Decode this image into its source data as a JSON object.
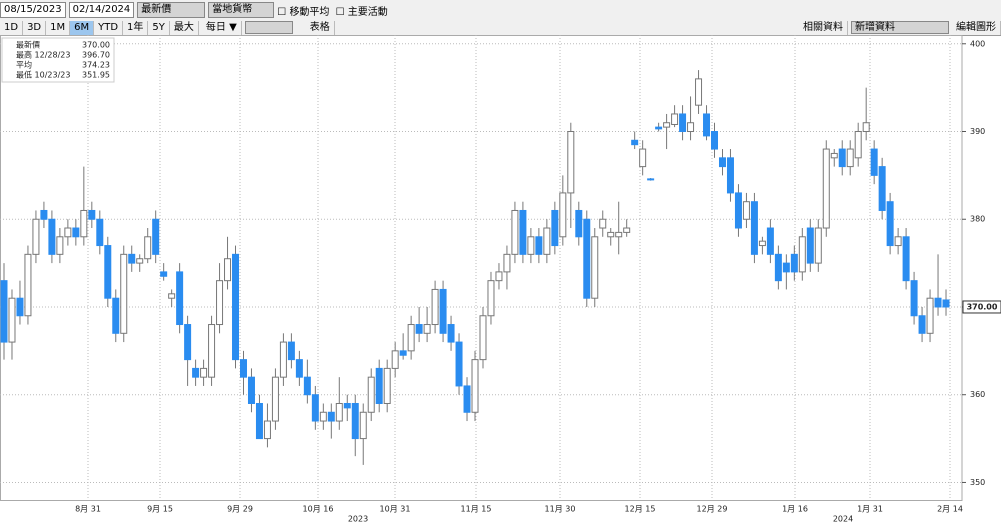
{
  "toolbar": {
    "start_date": "08/15/2023",
    "end_date": "02/14/2024",
    "field": "最新價",
    "currency": "當地貨幣",
    "moving_average": "移動平均",
    "events": "主要活動",
    "ranges": [
      "1D",
      "3D",
      "1M",
      "6M",
      "YTD",
      "1年",
      "5Y",
      "最大"
    ],
    "frequency": "每日 ▼",
    "table": "表格",
    "related": "相關資料",
    "add": "新增資料",
    "edit": "編輯圖形"
  },
  "chart_data": {
    "type": "candlestick",
    "legend": [
      {
        "label": "最新價",
        "value": "370.00"
      },
      {
        "label": "最高 12/28/23",
        "value": "396.70"
      },
      {
        "label": "平均",
        "value": "374.23"
      },
      {
        "label": "最低 10/23/23",
        "value": "351.95"
      }
    ],
    "up_color": "#ffffff",
    "down_color": "#2a8cf0",
    "wick_color": "#777777",
    "ylim": [
      348,
      401
    ],
    "yticks": [
      350,
      360,
      370,
      380,
      390,
      400
    ],
    "grid": true,
    "xticks": [
      "8月 31",
      "9月 15",
      "9月 29",
      "10月 16",
      "10月 31",
      "11月 15",
      "11月 30",
      "12月 15",
      "12月 29",
      "1月 16",
      "1月 31",
      "2月 14"
    ],
    "years": [
      "2023",
      "2024"
    ],
    "candles": [
      [
        373,
        375,
        364,
        366
      ],
      [
        366,
        372,
        364,
        371
      ],
      [
        371,
        373,
        368,
        369
      ],
      [
        369,
        377,
        368,
        376
      ],
      [
        376,
        381,
        375,
        380
      ],
      [
        381,
        382,
        379,
        380
      ],
      [
        380,
        381,
        375,
        376
      ],
      [
        376,
        379,
        375,
        378
      ],
      [
        378,
        380,
        377,
        379
      ],
      [
        379,
        380,
        377,
        378
      ],
      [
        378,
        386,
        377,
        381
      ],
      [
        381,
        382,
        379,
        380
      ],
      [
        380,
        381,
        376,
        377
      ],
      [
        377,
        378,
        370,
        371
      ],
      [
        371,
        372,
        366,
        367
      ],
      [
        367,
        377,
        366,
        376
      ],
      [
        376,
        377,
        374,
        375
      ],
      [
        375,
        376,
        374,
        375.5
      ],
      [
        375.5,
        379,
        375,
        378
      ],
      [
        380,
        381,
        375,
        376
      ],
      [
        374,
        375,
        373,
        373.5
      ],
      [
        371,
        372,
        370,
        371.5
      ],
      [
        374,
        375,
        367,
        368
      ],
      [
        368,
        369,
        361,
        364
      ],
      [
        363,
        364,
        361,
        362
      ],
      [
        362,
        364,
        361,
        363
      ],
      [
        362,
        369,
        361,
        368
      ],
      [
        368,
        375,
        367,
        373
      ],
      [
        373,
        378,
        372,
        375.5
      ],
      [
        376,
        377,
        363,
        364
      ],
      [
        364,
        365,
        360,
        362
      ],
      [
        362,
        363,
        358,
        359
      ],
      [
        359,
        360,
        355,
        355
      ],
      [
        355,
        359,
        354,
        357
      ],
      [
        357,
        363,
        356,
        362
      ],
      [
        362,
        367,
        361,
        366
      ],
      [
        366,
        367,
        363,
        364
      ],
      [
        364,
        365,
        361,
        362
      ],
      [
        362,
        364,
        359,
        360
      ],
      [
        360,
        361,
        356,
        357
      ],
      [
        357,
        359,
        356,
        358
      ],
      [
        358,
        359,
        355,
        357
      ],
      [
        357,
        362,
        356,
        359
      ],
      [
        359,
        360,
        357,
        358.5
      ],
      [
        359,
        360,
        353,
        355
      ],
      [
        355,
        359,
        352,
        358
      ],
      [
        358,
        363,
        357,
        362
      ],
      [
        363,
        364,
        358,
        359
      ],
      [
        359,
        364,
        358,
        363
      ],
      [
        363,
        366,
        362,
        365
      ],
      [
        365,
        367,
        364,
        364.5
      ],
      [
        365,
        369,
        364,
        368
      ],
      [
        368,
        370,
        366,
        367
      ],
      [
        367,
        370,
        366,
        368
      ],
      [
        368,
        373,
        367,
        372
      ],
      [
        372,
        373,
        366,
        367
      ],
      [
        368,
        369,
        365,
        366
      ],
      [
        366,
        367,
        360,
        361
      ],
      [
        361,
        362,
        357,
        358
      ],
      [
        358,
        365,
        357,
        364
      ],
      [
        364,
        370,
        363,
        369
      ],
      [
        369,
        374,
        368,
        373
      ],
      [
        373,
        375,
        372,
        374
      ],
      [
        374,
        377,
        372,
        376
      ],
      [
        376,
        382,
        375,
        381
      ],
      [
        381,
        382,
        375,
        376
      ],
      [
        376,
        379,
        375,
        378
      ],
      [
        378,
        379,
        375,
        376
      ],
      [
        376,
        380,
        375,
        379
      ],
      [
        381,
        382,
        376,
        377
      ],
      [
        378,
        385,
        377,
        383
      ],
      [
        383,
        391,
        379,
        390
      ],
      [
        381,
        382,
        377,
        378
      ],
      [
        380,
        381,
        370,
        371
      ],
      [
        371,
        379,
        370,
        378
      ],
      [
        379,
        381,
        378,
        380
      ],
      [
        378,
        379,
        377,
        378.5
      ],
      [
        378,
        382,
        376,
        378.5
      ],
      [
        378.5,
        380,
        378,
        379
      ],
      [
        389,
        390,
        388,
        388.5
      ],
      [
        386,
        389,
        385,
        388
      ],
      [
        384.6,
        384.7,
        384.4,
        384.5
      ],
      [
        390.5,
        391,
        390,
        390.3
      ],
      [
        390.5,
        392,
        388,
        391
      ],
      [
        390.8,
        393,
        390.5,
        392
      ],
      [
        392,
        393,
        389,
        390
      ],
      [
        390,
        394,
        389,
        391
      ],
      [
        393,
        397,
        392,
        396
      ],
      [
        392,
        393,
        389,
        389.5
      ],
      [
        390,
        391,
        387,
        388
      ],
      [
        387,
        388,
        385,
        386
      ],
      [
        387,
        388,
        382,
        383
      ],
      [
        383,
        384,
        378,
        379
      ],
      [
        380,
        383,
        379,
        382
      ],
      [
        382,
        383,
        375,
        376
      ],
      [
        377,
        378,
        376,
        377.5
      ],
      [
        379,
        380,
        375,
        376
      ],
      [
        376,
        377,
        372,
        373
      ],
      [
        375,
        376,
        372,
        374
      ],
      [
        376,
        377,
        373,
        374
      ],
      [
        374,
        379,
        373,
        378
      ],
      [
        379,
        380,
        374,
        375
      ],
      [
        375,
        380,
        374,
        379
      ],
      [
        379,
        389,
        378,
        388
      ],
      [
        387,
        388,
        386,
        387.5
      ],
      [
        388,
        389,
        385,
        386
      ],
      [
        386,
        389,
        385,
        388
      ],
      [
        387,
        391,
        386,
        390
      ],
      [
        390,
        395,
        389,
        391
      ],
      [
        388,
        389,
        384,
        385
      ],
      [
        386,
        387,
        380,
        381
      ],
      [
        382,
        383,
        376,
        377
      ],
      [
        377,
        379,
        376,
        378
      ],
      [
        378,
        379,
        372,
        373
      ],
      [
        373,
        374,
        368,
        369
      ],
      [
        369,
        370,
        366,
        367
      ],
      [
        367,
        372,
        366,
        371
      ],
      [
        371,
        376,
        369,
        370
      ],
      [
        370.8,
        372,
        369,
        370
      ]
    ]
  }
}
